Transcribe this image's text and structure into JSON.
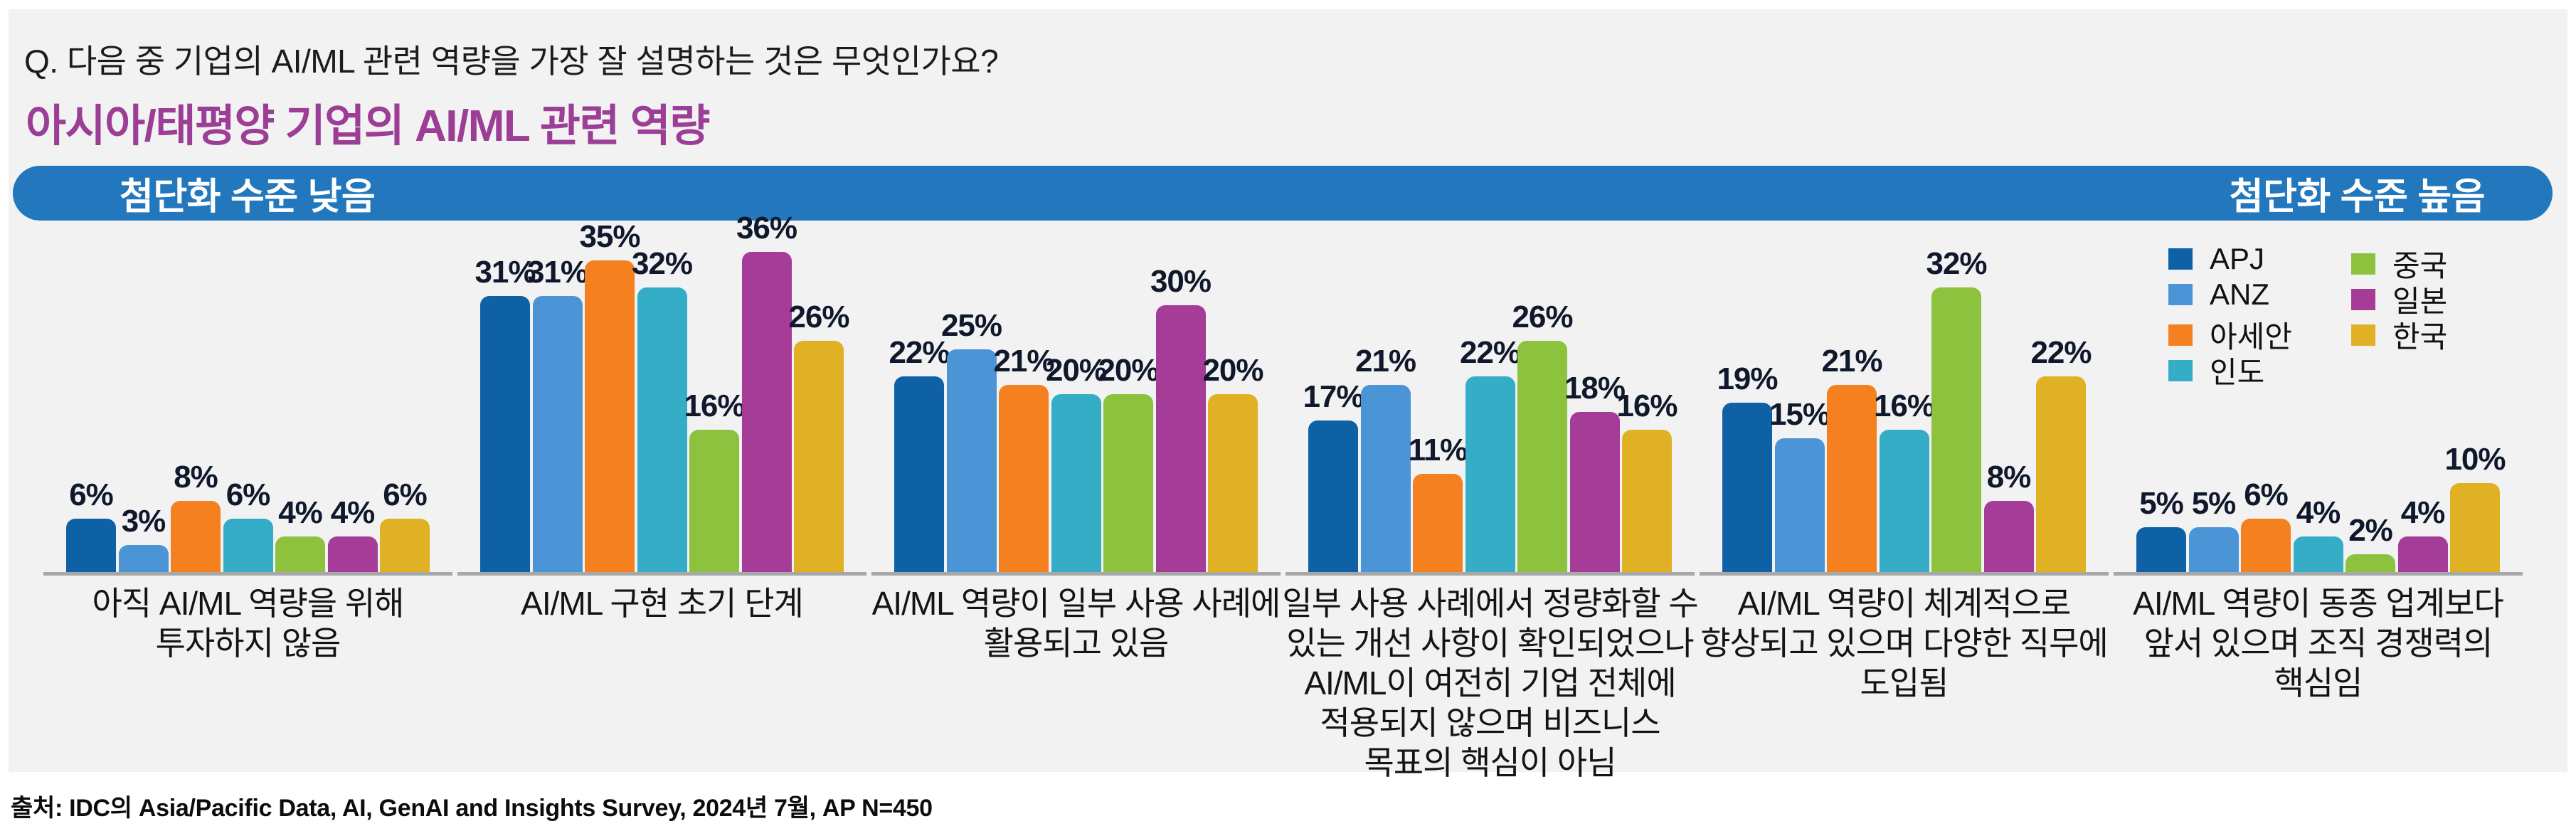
{
  "header": {
    "question": "Q. 다음 중 기업의 AI/ML 관련 역량을 가장 잘 설명하는 것은 무엇인가요?",
    "title": "아시아/태평양 기업의 AI/ML 관련 역량",
    "title_color": "#9c3e96"
  },
  "banner": {
    "left_label": "첨단화 수준 낮음",
    "right_label": "첨단화 수준 높음",
    "color": "#2277bd"
  },
  "chart_data": {
    "type": "bar",
    "unit": "%",
    "title": "아시아/태평양 기업의 AI/ML 관련 역량",
    "ylim": [
      0,
      40
    ],
    "grid": false,
    "legend_position": "top-right",
    "value_label_format": "{v}%",
    "categories": [
      [
        "아직 AI/ML 역량을 위해",
        "투자하지 않음"
      ],
      [
        "AI/ML 구현 초기 단계"
      ],
      [
        "AI/ML 역량이 일부 사용 사례에",
        "활용되고 있음"
      ],
      [
        "일부 사용 사례에서 정량화할 수",
        "있는 개선 사항이 확인되었으나",
        "AI/ML이 여전히 기업 전체에",
        "적용되지 않으며 비즈니스",
        "목표의 핵심이 아님"
      ],
      [
        "AI/ML 역량이 체계적으로",
        "향상되고 있으며 다양한 직무에",
        "도입됨"
      ],
      [
        "AI/ML 역량이 동종 업계보다",
        "앞서 있으며 조직 경쟁력의",
        "핵심임"
      ]
    ],
    "series": [
      {
        "name": "APJ",
        "color": "#0d61a4",
        "values": [
          6,
          31,
          22,
          17,
          19,
          5
        ]
      },
      {
        "name": "ANZ",
        "color": "#4b95d6",
        "values": [
          3,
          31,
          25,
          21,
          15,
          5
        ]
      },
      {
        "name": "아세안",
        "color": "#f5801f",
        "values": [
          8,
          35,
          21,
          11,
          21,
          6
        ]
      },
      {
        "name": "인도",
        "color": "#35adc6",
        "values": [
          6,
          32,
          20,
          22,
          16,
          4
        ]
      },
      {
        "name": "중국",
        "color": "#8dc23f",
        "values": [
          4,
          16,
          20,
          26,
          32,
          2
        ]
      },
      {
        "name": "일본",
        "color": "#a43c98",
        "values": [
          4,
          36,
          30,
          18,
          8,
          4
        ]
      },
      {
        "name": "한국",
        "color": "#e0b124",
        "values": [
          6,
          26,
          20,
          16,
          22,
          10
        ]
      }
    ],
    "legend_columns": [
      [
        0,
        1,
        2,
        3
      ],
      [
        4,
        5,
        6
      ]
    ]
  },
  "footer": {
    "source": "출처: IDC의 Asia/Pacific Data, AI, GenAI and Insights Survey, 2024년 7월, AP N=450"
  }
}
